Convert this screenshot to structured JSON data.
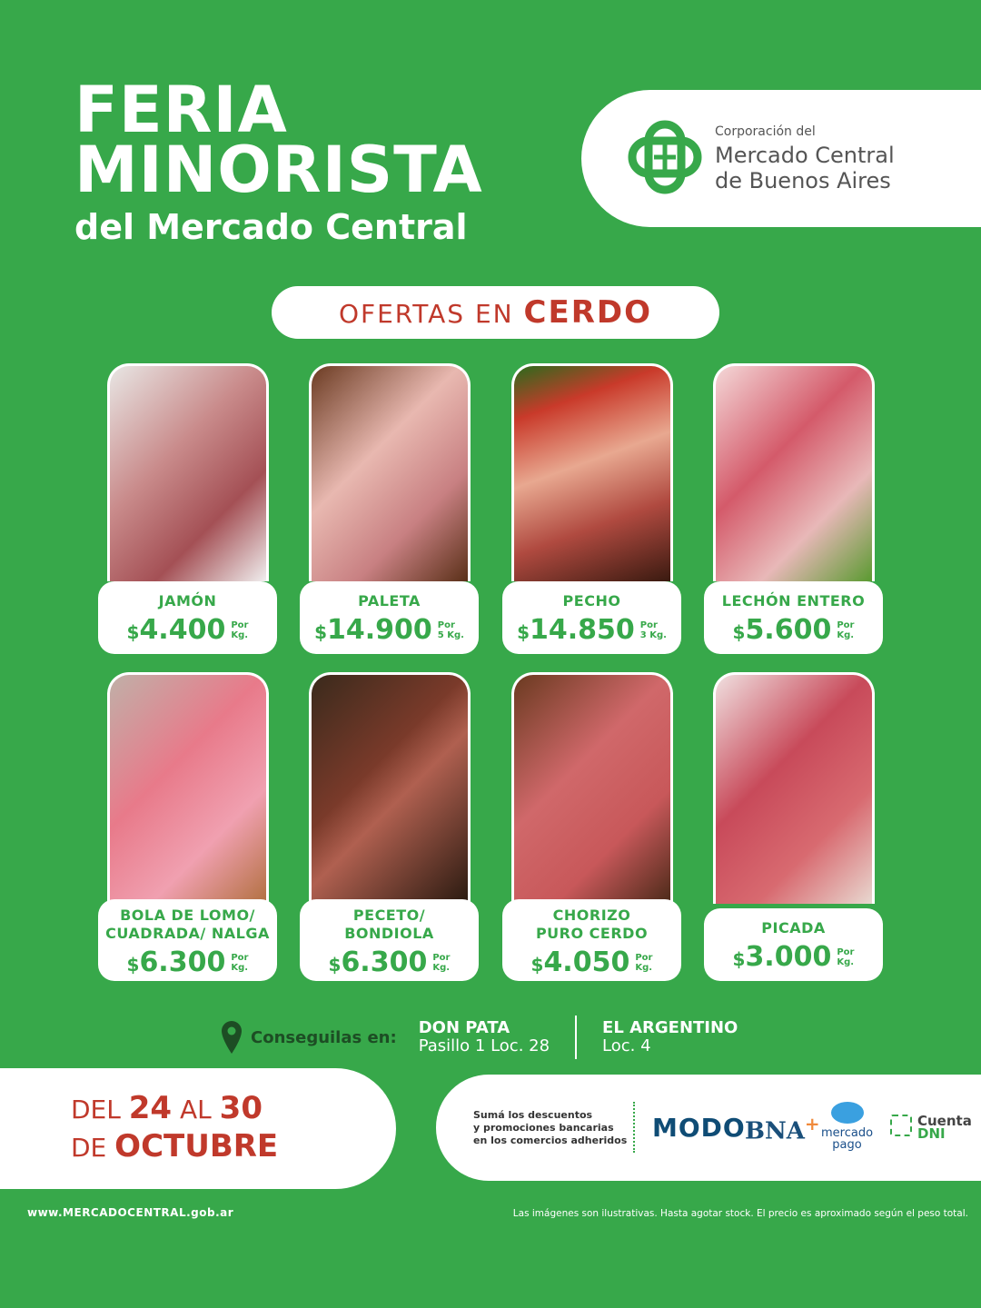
{
  "header": {
    "title_line1": "FERIA",
    "title_line2": "MINORISTA",
    "subtitle": "del Mercado Central"
  },
  "logo": {
    "line1": "Corporación del",
    "line2": "Mercado Central",
    "line3": "de Buenos Aires"
  },
  "offer": {
    "prefix": "OFERTAS EN",
    "category": "CERDO"
  },
  "products": [
    {
      "name": "JAMÓN",
      "name2": "",
      "currency": "$",
      "price": "4.400",
      "unit1": "Por",
      "unit2": "Kg."
    },
    {
      "name": "PALETA",
      "name2": "",
      "currency": "$",
      "price": "14.900",
      "unit1": "Por",
      "unit2": "5 Kg."
    },
    {
      "name": "PECHO",
      "name2": "",
      "currency": "$",
      "price": "14.850",
      "unit1": "Por",
      "unit2": "3 Kg."
    },
    {
      "name": "LECHÓN ENTERO",
      "name2": "",
      "currency": "$",
      "price": "5.600",
      "unit1": "Por",
      "unit2": "Kg."
    },
    {
      "name": "BOLA DE LOMO/",
      "name2": "CUADRADA/ NALGA",
      "currency": "$",
      "price": "6.300",
      "unit1": "Por",
      "unit2": "Kg."
    },
    {
      "name": "PECETO/",
      "name2": "BONDIOLA",
      "currency": "$",
      "price": "6.300",
      "unit1": "Por",
      "unit2": "Kg."
    },
    {
      "name": "CHORIZO",
      "name2": "PURO CERDO",
      "currency": "$",
      "price": "4.050",
      "unit1": "Por",
      "unit2": "Kg."
    },
    {
      "name": "PICADA",
      "name2": "",
      "currency": "$",
      "price": "3.000",
      "unit1": "Por",
      "unit2": "Kg."
    }
  ],
  "location": {
    "label": "Conseguilas en:",
    "stores": [
      {
        "name": "DON PATA",
        "detail": "Pasillo 1 Loc. 28"
      },
      {
        "name": "EL ARGENTINO",
        "detail": "Loc. 4"
      }
    ]
  },
  "dates": {
    "del": "DEL",
    "start": "24",
    "al": "AL",
    "end": "30",
    "de": "DE",
    "month": "OCTUBRE"
  },
  "banks": {
    "text1": "Sumá los descuentos",
    "text2": "y promociones bancarias",
    "text3": "en los comercios adheridos",
    "modo": "MODO",
    "bna": "BNA",
    "bna_plus": "+",
    "mp1": "mercado",
    "mp2": "pago",
    "cdni1": "Cuenta",
    "cdni2": "DNI"
  },
  "footer": {
    "url": "www.MERCADOCENTRAL.gob.ar",
    "disclaimer": "Las imágenes son ilustrativas. Hasta agotar stock. El precio es aproximado según el peso total."
  },
  "colors": {
    "green": "#37a84a",
    "red": "#c0392b"
  }
}
